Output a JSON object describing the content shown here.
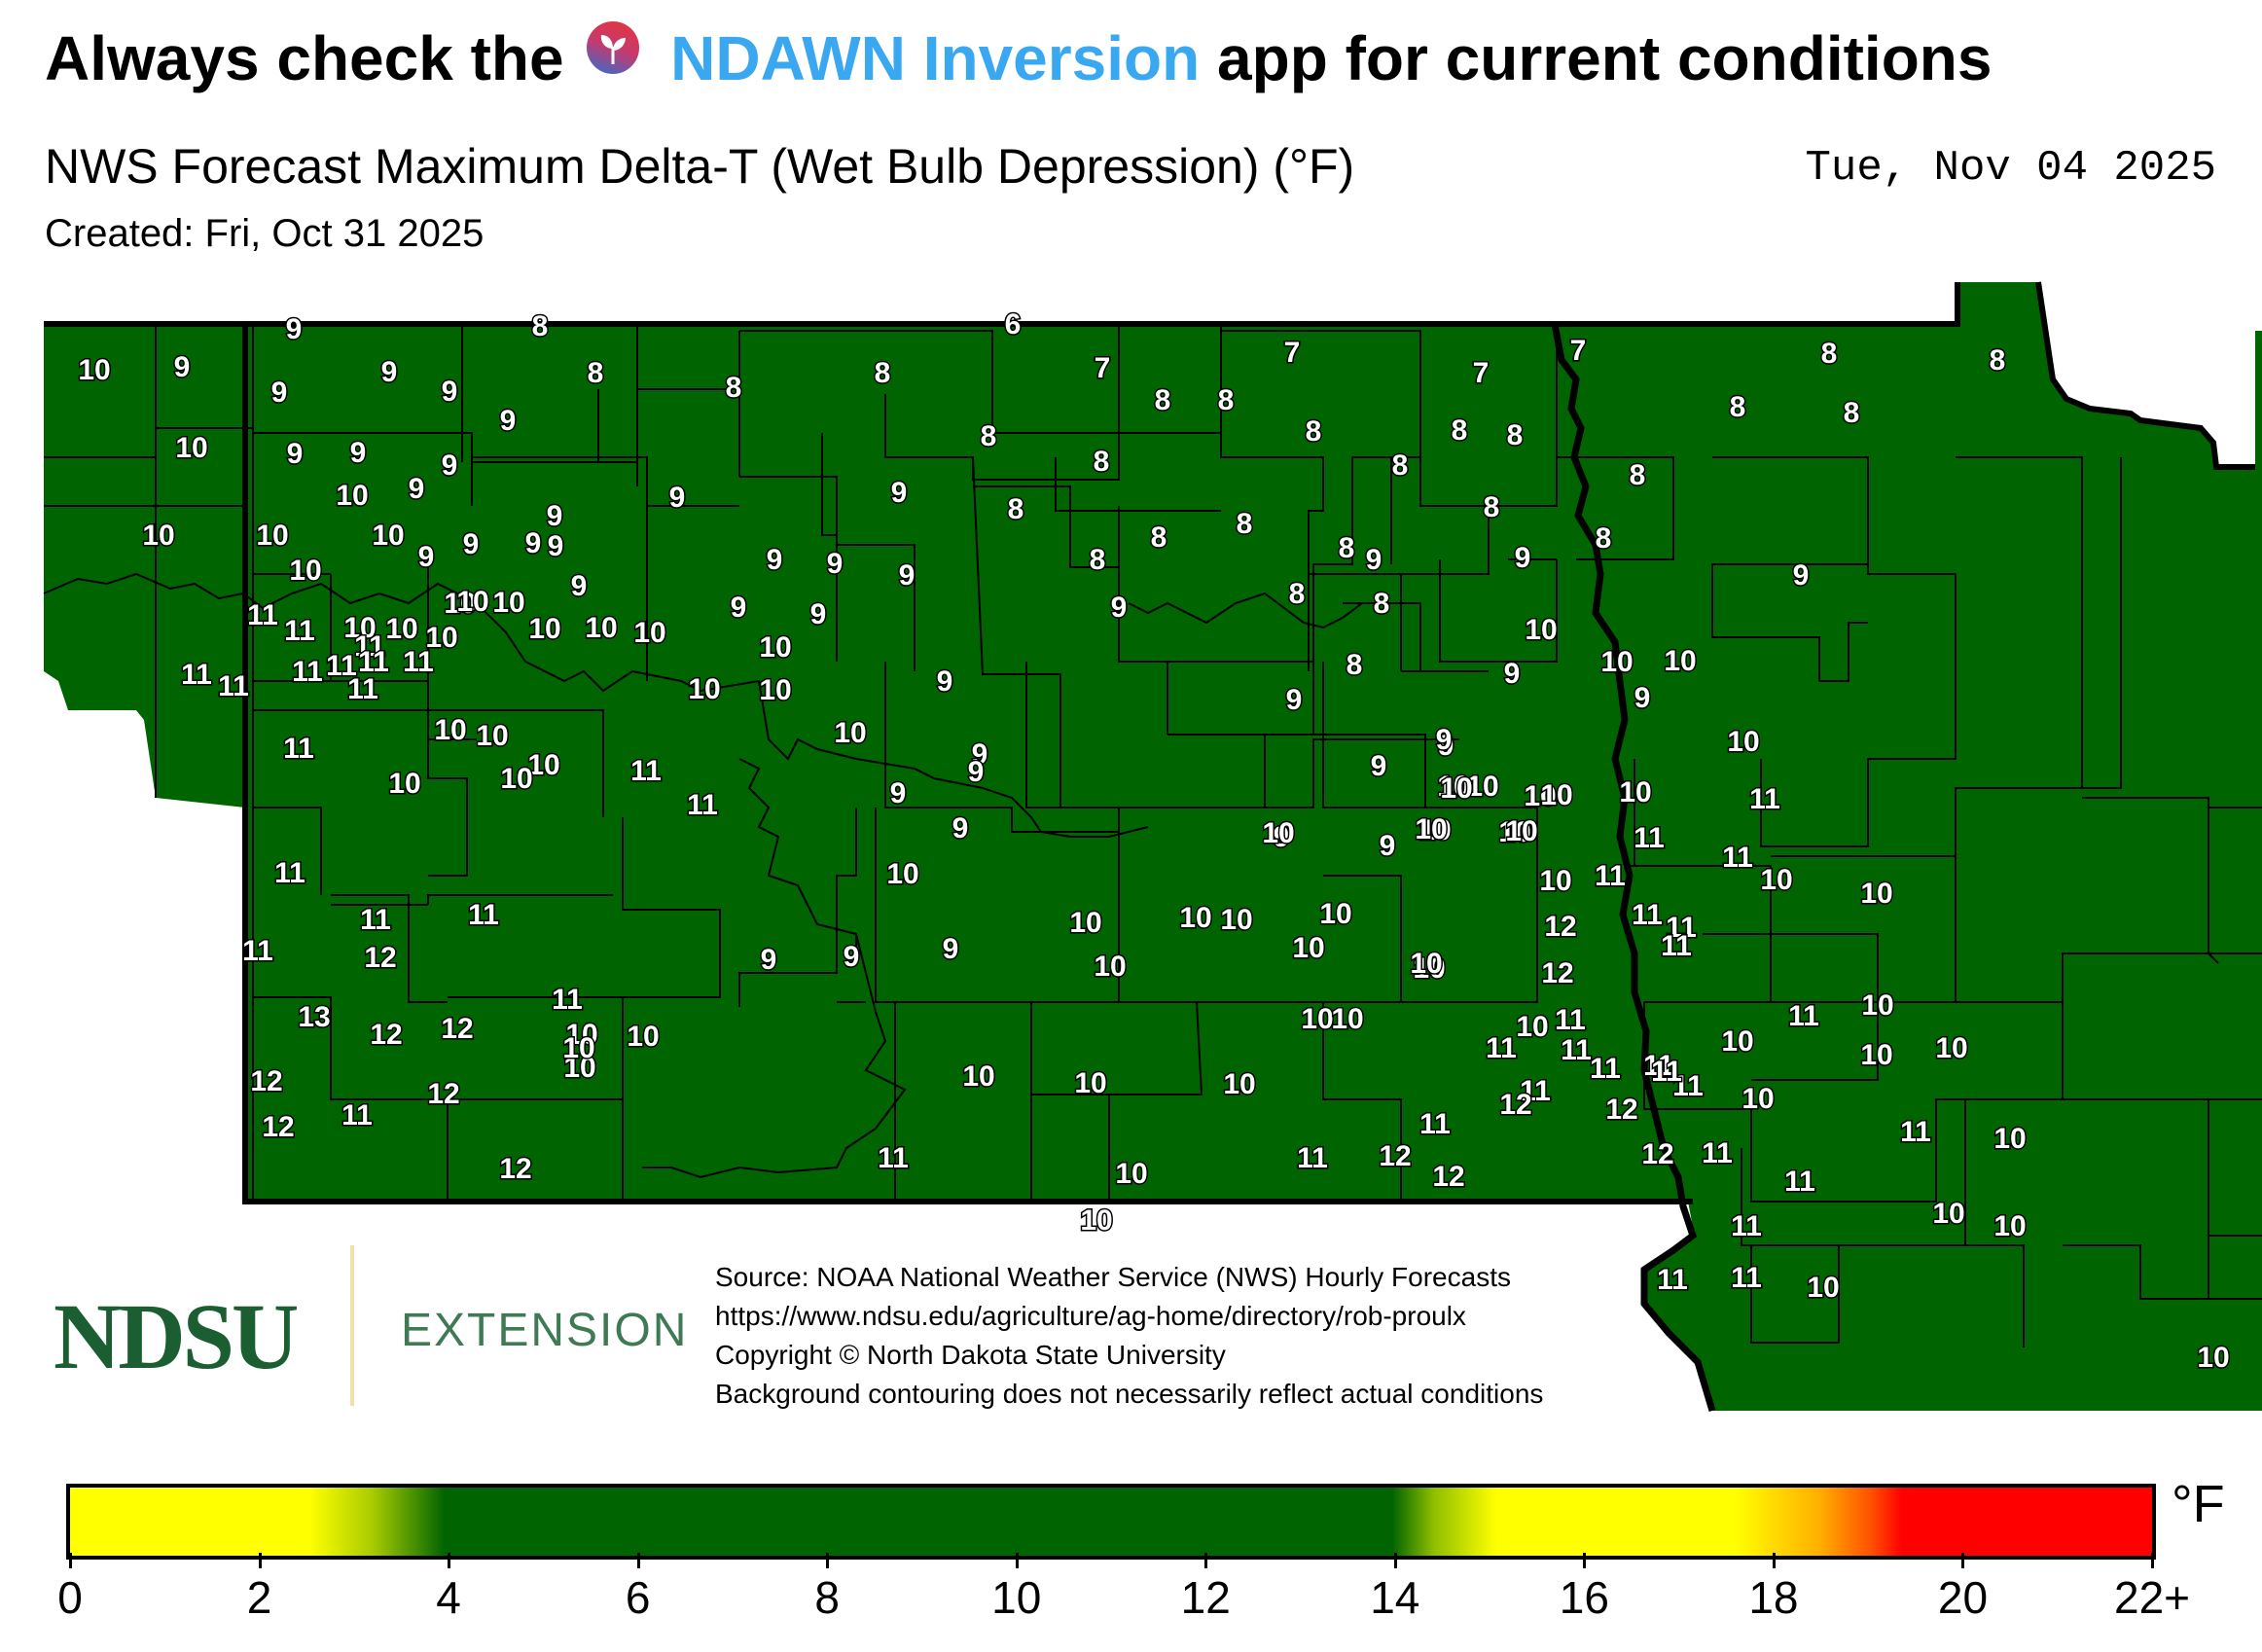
{
  "header": {
    "headline_pre": "Always check the",
    "app_name": "NDAWN Inversion",
    "headline_post": "app for current conditions",
    "app_icon": "seedling-app-icon",
    "app_color": "#3aa8f0"
  },
  "title": "NWS Forecast Maximum Delta-T (Wet Bulb Depression) (°F)",
  "forecast_date": "Tue, Nov 04 2025",
  "created": "Created: Fri, Oct 31 2025",
  "map": {
    "fill_color": "#006400",
    "values": [
      "6",
      "7",
      "7",
      "7",
      "7",
      "8",
      "8",
      "8",
      "8",
      "8",
      "8",
      "8",
      "8",
      "8",
      "8",
      "8",
      "8",
      "8",
      "8",
      "8",
      "8",
      "8",
      "8",
      "8",
      "8",
      "8",
      "8",
      "8",
      "8",
      "8",
      "8",
      "8",
      "9",
      "9",
      "9",
      "9",
      "9",
      "9",
      "9",
      "9",
      "9",
      "9",
      "9",
      "9",
      "9",
      "9",
      "9",
      "9",
      "9",
      "9",
      "9",
      "9",
      "9",
      "9",
      "9",
      "9",
      "9",
      "9",
      "9",
      "9",
      "9",
      "9",
      "9",
      "9",
      "9",
      "9",
      "9",
      "9",
      "9",
      "9",
      "9",
      "9",
      "9",
      "9",
      "9",
      "10",
      "10",
      "10",
      "10",
      "10",
      "10",
      "10",
      "10",
      "10",
      "10",
      "10",
      "10",
      "10",
      "10",
      "10",
      "10",
      "10",
      "10",
      "10",
      "10",
      "10",
      "10",
      "10",
      "10",
      "10",
      "10",
      "10",
      "10",
      "10",
      "10",
      "10",
      "10",
      "10",
      "10",
      "10",
      "10",
      "10",
      "10",
      "10",
      "10",
      "10",
      "10",
      "10",
      "10",
      "10",
      "10",
      "10",
      "10",
      "10",
      "10",
      "10",
      "10",
      "10",
      "10",
      "10",
      "10",
      "10",
      "10",
      "10",
      "10",
      "10",
      "10",
      "10",
      "10",
      "10",
      "10",
      "10",
      "10",
      "10",
      "10",
      "10",
      "10",
      "10",
      "10",
      "10",
      "11",
      "11",
      "11",
      "11",
      "11",
      "11",
      "11",
      "11",
      "11",
      "11",
      "11",
      "11",
      "11",
      "11",
      "11",
      "11",
      "11",
      "11",
      "11",
      "11",
      "11",
      "11",
      "11",
      "11",
      "11",
      "11",
      "11",
      "11",
      "11",
      "11",
      "11",
      "11",
      "11",
      "11",
      "11",
      "11",
      "11",
      "11",
      "11",
      "11",
      "11",
      "11",
      "11",
      "11",
      "12",
      "12",
      "12",
      "12",
      "12",
      "12",
      "12",
      "12",
      "12",
      "12",
      "12",
      "12",
      "12",
      "12",
      "12",
      "12",
      "12",
      "13"
    ]
  },
  "branding": {
    "logo": "NDSU",
    "extension": "EXTENSION"
  },
  "source": [
    "Source: NOAA National Weather Service (NWS) Hourly Forecasts",
    "https://www.ndsu.edu/agriculture/ag-home/directory/rob-proulx",
    "Copyright © North Dakota State University",
    "Background contouring does not necessarily reflect actual conditions"
  ],
  "colorbar": {
    "unit": "°F",
    "min": 0,
    "max": 22,
    "ticks": [
      "0",
      "2",
      "4",
      "6",
      "8",
      "10",
      "12",
      "14",
      "16",
      "18",
      "20",
      "22+"
    ],
    "colors": [
      "#ffff00",
      "#006400",
      "#ffff00",
      "#ff0000"
    ]
  }
}
